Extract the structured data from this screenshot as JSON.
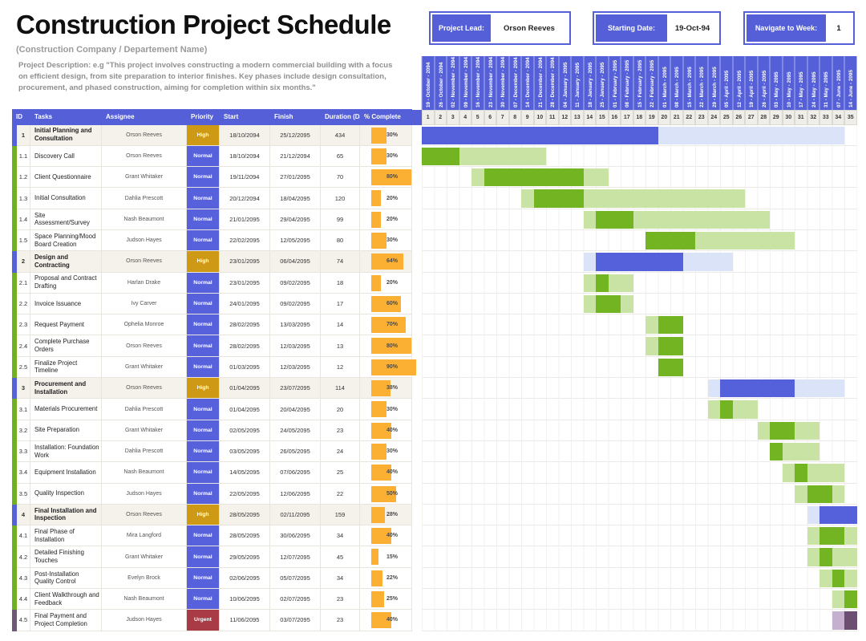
{
  "header": {
    "title": "Construction Project Schedule",
    "subtitle": "(Construction Company / Departement Name)",
    "description": "Project Description: e.g \"This project involves constructing a modern commercial building with a focus on efficient design, from site preparation to interior finishes. Key phases include design consultation, procurement, and phased construction, aiming for completion within six months.\"",
    "info_boxes": [
      {
        "label": "Project Lead:",
        "value": "Orson Reeves"
      },
      {
        "label": "Starting Date:",
        "value": "19-Oct-94"
      },
      {
        "label": "Navigate to Week:",
        "value": "1"
      }
    ]
  },
  "table": {
    "columns": [
      "ID",
      "Tasks",
      "Assignee",
      "Priority",
      "Start",
      "Finish",
      "Duration (Days)",
      "% Complete"
    ],
    "rows": [
      {
        "id": "1",
        "task": "Initial Planning and Consultation",
        "assignee": "Orson Reeves",
        "priority": "High",
        "start": "18/10/2094",
        "finish": "25/12/2095",
        "duration": "434",
        "pct": 30,
        "phase": true,
        "color": "blue",
        "segments": [
          {
            "shade": "dark",
            "from": 1,
            "to": 19
          },
          {
            "shade": "light",
            "from": 20,
            "to": 34
          }
        ]
      },
      {
        "id": "1.1",
        "task": "Discovery Call",
        "assignee": "Orson Reeves",
        "priority": "Normal",
        "start": "18/10/2094",
        "finish": "21/12/2094",
        "duration": "65",
        "pct": 30,
        "phase": false,
        "color": "green",
        "segments": [
          {
            "shade": "dark",
            "from": 1,
            "to": 3
          },
          {
            "shade": "light",
            "from": 4,
            "to": 10
          }
        ]
      },
      {
        "id": "1.2",
        "task": "Client Questionnaire",
        "assignee": "Grant Whitaker",
        "priority": "Normal",
        "start": "19/11/2094",
        "finish": "27/01/2095",
        "duration": "70",
        "pct": 80,
        "phase": false,
        "color": "green",
        "segments": [
          {
            "shade": "light",
            "from": 5,
            "to": 5
          },
          {
            "shade": "dark",
            "from": 6,
            "to": 13
          },
          {
            "shade": "light",
            "from": 14,
            "to": 15
          }
        ]
      },
      {
        "id": "1.3",
        "task": "Initial Consultation",
        "assignee": "Dahlia Prescott",
        "priority": "Normal",
        "start": "20/12/2094",
        "finish": "18/04/2095",
        "duration": "120",
        "pct": 20,
        "phase": false,
        "color": "green",
        "segments": [
          {
            "shade": "light",
            "from": 9,
            "to": 9
          },
          {
            "shade": "dark",
            "from": 10,
            "to": 13
          },
          {
            "shade": "light",
            "from": 14,
            "to": 26
          }
        ]
      },
      {
        "id": "1.4",
        "task": "Site Assessment/Survey",
        "assignee": "Nash Beaumont",
        "priority": "Normal",
        "start": "21/01/2095",
        "finish": "29/04/2095",
        "duration": "99",
        "pct": 20,
        "phase": false,
        "color": "green",
        "segments": [
          {
            "shade": "light",
            "from": 14,
            "to": 14
          },
          {
            "shade": "dark",
            "from": 15,
            "to": 17
          },
          {
            "shade": "light",
            "from": 18,
            "to": 28
          }
        ]
      },
      {
        "id": "1.5",
        "task": "Space Planning/Mood Board Creation",
        "assignee": "Judson Hayes",
        "priority": "Normal",
        "start": "22/02/2095",
        "finish": "12/05/2095",
        "duration": "80",
        "pct": 30,
        "phase": false,
        "color": "green",
        "segments": [
          {
            "shade": "dark",
            "from": 19,
            "to": 22
          },
          {
            "shade": "light",
            "from": 23,
            "to": 30
          }
        ]
      },
      {
        "id": "2",
        "task": "Design and Contracting",
        "assignee": "Orson Reeves",
        "priority": "High",
        "start": "23/01/2095",
        "finish": "06/04/2095",
        "duration": "74",
        "pct": 64,
        "phase": true,
        "color": "blue",
        "segments": [
          {
            "shade": "light",
            "from": 14,
            "to": 14
          },
          {
            "shade": "dark",
            "from": 15,
            "to": 21
          },
          {
            "shade": "light",
            "from": 22,
            "to": 25
          }
        ]
      },
      {
        "id": "2.1",
        "task": "Proposal and Contract Drafting",
        "assignee": "Harlan Drake",
        "priority": "Normal",
        "start": "23/01/2095",
        "finish": "09/02/2095",
        "duration": "18",
        "pct": 20,
        "phase": false,
        "color": "green",
        "segments": [
          {
            "shade": "light",
            "from": 14,
            "to": 14
          },
          {
            "shade": "dark",
            "from": 15,
            "to": 15
          },
          {
            "shade": "light",
            "from": 16,
            "to": 17
          }
        ]
      },
      {
        "id": "2.2",
        "task": "Invoice Issuance",
        "assignee": "Ivy Carver",
        "priority": "Normal",
        "start": "24/01/2095",
        "finish": "09/02/2095",
        "duration": "17",
        "pct": 60,
        "phase": false,
        "color": "green",
        "segments": [
          {
            "shade": "light",
            "from": 14,
            "to": 14
          },
          {
            "shade": "dark",
            "from": 15,
            "to": 16
          },
          {
            "shade": "light",
            "from": 17,
            "to": 17
          }
        ]
      },
      {
        "id": "2.3",
        "task": "Request Payment",
        "assignee": "Ophelia Monroe",
        "priority": "Normal",
        "start": "28/02/2095",
        "finish": "13/03/2095",
        "duration": "14",
        "pct": 70,
        "phase": false,
        "color": "green",
        "segments": [
          {
            "shade": "light",
            "from": 19,
            "to": 19
          },
          {
            "shade": "dark",
            "from": 20,
            "to": 21
          }
        ]
      },
      {
        "id": "2.4",
        "task": "Complete Purchase Orders",
        "assignee": "Orson Reeves",
        "priority": "Normal",
        "start": "28/02/2095",
        "finish": "12/03/2095",
        "duration": "13",
        "pct": 80,
        "phase": false,
        "color": "green",
        "segments": [
          {
            "shade": "light",
            "from": 19,
            "to": 19
          },
          {
            "shade": "dark",
            "from": 20,
            "to": 21
          }
        ]
      },
      {
        "id": "2.5",
        "task": "Finalize Project Timeline",
        "assignee": "Grant Whitaker",
        "priority": "Normal",
        "start": "01/03/2095",
        "finish": "12/03/2095",
        "duration": "12",
        "pct": 90,
        "phase": false,
        "color": "green",
        "segments": [
          {
            "shade": "dark",
            "from": 20,
            "to": 21
          }
        ]
      },
      {
        "id": "3",
        "task": "Procurement and Installation",
        "assignee": "Orson Reeves",
        "priority": "High",
        "start": "01/04/2095",
        "finish": "23/07/2095",
        "duration": "114",
        "pct": 38,
        "phase": true,
        "color": "blue",
        "segments": [
          {
            "shade": "light",
            "from": 24,
            "to": 24
          },
          {
            "shade": "dark",
            "from": 25,
            "to": 30
          },
          {
            "shade": "light",
            "from": 31,
            "to": 34
          }
        ]
      },
      {
        "id": "3.1",
        "task": "Materials Procurement",
        "assignee": "Dahlia Prescott",
        "priority": "Normal",
        "start": "01/04/2095",
        "finish": "20/04/2095",
        "duration": "20",
        "pct": 30,
        "phase": false,
        "color": "green",
        "segments": [
          {
            "shade": "light",
            "from": 24,
            "to": 24
          },
          {
            "shade": "dark",
            "from": 25,
            "to": 25
          },
          {
            "shade": "light",
            "from": 26,
            "to": 27
          }
        ]
      },
      {
        "id": "3.2",
        "task": "Site Preparation",
        "assignee": "Grant Whitaker",
        "priority": "Normal",
        "start": "02/05/2095",
        "finish": "24/05/2095",
        "duration": "23",
        "pct": 40,
        "phase": false,
        "color": "green",
        "segments": [
          {
            "shade": "light",
            "from": 28,
            "to": 28
          },
          {
            "shade": "dark",
            "from": 29,
            "to": 30
          },
          {
            "shade": "light",
            "from": 31,
            "to": 32
          }
        ]
      },
      {
        "id": "3.3",
        "task": "Installation: Foundation Work",
        "assignee": "Dahlia Prescott",
        "priority": "Normal",
        "start": "03/05/2095",
        "finish": "26/05/2095",
        "duration": "24",
        "pct": 30,
        "phase": false,
        "color": "green",
        "segments": [
          {
            "shade": "dark",
            "from": 29,
            "to": 29
          },
          {
            "shade": "light",
            "from": 30,
            "to": 32
          }
        ]
      },
      {
        "id": "3.4",
        "task": "Equipment Installation",
        "assignee": "Nash Beaumont",
        "priority": "Normal",
        "start": "14/05/2095",
        "finish": "07/06/2095",
        "duration": "25",
        "pct": 40,
        "phase": false,
        "color": "green",
        "segments": [
          {
            "shade": "light",
            "from": 30,
            "to": 30
          },
          {
            "shade": "dark",
            "from": 31,
            "to": 31
          },
          {
            "shade": "light",
            "from": 32,
            "to": 34
          }
        ]
      },
      {
        "id": "3.5",
        "task": "Quality Inspection",
        "assignee": "Judson Hayes",
        "priority": "Normal",
        "start": "22/05/2095",
        "finish": "12/06/2095",
        "duration": "22",
        "pct": 50,
        "phase": false,
        "color": "green",
        "segments": [
          {
            "shade": "light",
            "from": 31,
            "to": 31
          },
          {
            "shade": "dark",
            "from": 32,
            "to": 33
          },
          {
            "shade": "light",
            "from": 34,
            "to": 34
          }
        ]
      },
      {
        "id": "4",
        "task": "Final Installation and Inspection",
        "assignee": "Orson Reeves",
        "priority": "High",
        "start": "28/05/2095",
        "finish": "02/11/2095",
        "duration": "159",
        "pct": 28,
        "phase": true,
        "color": "blue",
        "segments": [
          {
            "shade": "light",
            "from": 32,
            "to": 32
          },
          {
            "shade": "dark",
            "from": 33,
            "to": 35
          }
        ]
      },
      {
        "id": "4.1",
        "task": "Final Phase of Installation",
        "assignee": "Mira Langford",
        "priority": "Normal",
        "start": "28/05/2095",
        "finish": "30/06/2095",
        "duration": "34",
        "pct": 40,
        "phase": false,
        "color": "green",
        "segments": [
          {
            "shade": "light",
            "from": 32,
            "to": 32
          },
          {
            "shade": "dark",
            "from": 33,
            "to": 34
          },
          {
            "shade": "light",
            "from": 35,
            "to": 35
          }
        ]
      },
      {
        "id": "4.2",
        "task": "Detailed Finishing Touches",
        "assignee": "Grant Whitaker",
        "priority": "Normal",
        "start": "29/05/2095",
        "finish": "12/07/2095",
        "duration": "45",
        "pct": 15,
        "phase": false,
        "color": "green",
        "segments": [
          {
            "shade": "light",
            "from": 32,
            "to": 32
          },
          {
            "shade": "dark",
            "from": 33,
            "to": 33
          },
          {
            "shade": "light",
            "from": 34,
            "to": 35
          }
        ]
      },
      {
        "id": "4.3",
        "task": "Post-Installation Quality Control",
        "assignee": "Evelyn Brock",
        "priority": "Normal",
        "start": "02/06/2095",
        "finish": "05/07/2095",
        "duration": "34",
        "pct": 22,
        "phase": false,
        "color": "green",
        "segments": [
          {
            "shade": "light",
            "from": 33,
            "to": 33
          },
          {
            "shade": "dark",
            "from": 34,
            "to": 34
          },
          {
            "shade": "light",
            "from": 35,
            "to": 35
          }
        ]
      },
      {
        "id": "4.4",
        "task": "Client Walkthrough and Feedback",
        "assignee": "Nash Beaumont",
        "priority": "Normal",
        "start": "10/06/2095",
        "finish": "02/07/2095",
        "duration": "23",
        "pct": 25,
        "phase": false,
        "color": "green",
        "segments": [
          {
            "shade": "light",
            "from": 34,
            "to": 34
          },
          {
            "shade": "dark",
            "from": 35,
            "to": 35
          }
        ]
      },
      {
        "id": "4.5",
        "task": "Final Payment and Project Completion",
        "assignee": "Judson Hayes",
        "priority": "Urgent",
        "start": "11/06/2095",
        "finish": "03/07/2095",
        "duration": "23",
        "pct": 40,
        "phase": false,
        "color": "purple",
        "segments": [
          {
            "shade": "light",
            "from": 34,
            "to": 34
          },
          {
            "shade": "dark",
            "from": 35,
            "to": 35
          }
        ]
      }
    ]
  },
  "gantt": {
    "weeks": [
      {
        "num": "1",
        "date": "19 - October - 2094"
      },
      {
        "num": "2",
        "date": "26 - October - 2094"
      },
      {
        "num": "3",
        "date": "02 - November - 2094"
      },
      {
        "num": "4",
        "date": "09 - November - 2094"
      },
      {
        "num": "5",
        "date": "16 - November - 2094"
      },
      {
        "num": "6",
        "date": "23 - November - 2094"
      },
      {
        "num": "7",
        "date": "30 - November - 2094"
      },
      {
        "num": "8",
        "date": "07 - December - 2094"
      },
      {
        "num": "9",
        "date": "14 - December - 2094"
      },
      {
        "num": "10",
        "date": "21 - December - 2094"
      },
      {
        "num": "11",
        "date": "28 - December - 2094"
      },
      {
        "num": "12",
        "date": "04 - January - 2095"
      },
      {
        "num": "13",
        "date": "11 - January - 2095"
      },
      {
        "num": "14",
        "date": "18 - January - 2095"
      },
      {
        "num": "15",
        "date": "25 - January - 2095"
      },
      {
        "num": "16",
        "date": "01 - February - 2095"
      },
      {
        "num": "17",
        "date": "08 - February - 2095"
      },
      {
        "num": "18",
        "date": "15 - February - 2095"
      },
      {
        "num": "19",
        "date": "22 - February - 2095"
      },
      {
        "num": "20",
        "date": "01 - March - 2095"
      },
      {
        "num": "21",
        "date": "08 - March - 2095"
      },
      {
        "num": "22",
        "date": "15 - March - 2095"
      },
      {
        "num": "23",
        "date": "22 - March - 2095"
      },
      {
        "num": "24",
        "date": "29 - March - 2095"
      },
      {
        "num": "25",
        "date": "05 - April - 2095"
      },
      {
        "num": "26",
        "date": "12 - April - 2095"
      },
      {
        "num": "27",
        "date": "19 - April - 2095"
      },
      {
        "num": "28",
        "date": "26 - April - 2095"
      },
      {
        "num": "29",
        "date": "03 - May - 2095"
      },
      {
        "num": "30",
        "date": "10 - May - 2095"
      },
      {
        "num": "31",
        "date": "17 - May - 2095"
      },
      {
        "num": "32",
        "date": "24 - May - 2095"
      },
      {
        "num": "33",
        "date": "31 - May - 2095"
      },
      {
        "num": "34",
        "date": "07 - June - 2095"
      },
      {
        "num": "35",
        "date": "14 - June - 2095"
      }
    ]
  },
  "colors": {
    "accent_blue": "#5560d8",
    "priority_normal": "#5661db",
    "priority_high": "#ce9914",
    "priority_urgent": "#a93b47",
    "progress_orange": "#fbb034",
    "phase_row_bg": "#f5f1eb",
    "bar_blue_dark": "#5560db",
    "bar_blue_light": "#dbe3f8",
    "bar_green_dark": "#73b422",
    "bar_green_light": "#c8e3a4",
    "bar_purple_dark": "#6b4e71",
    "bar_purple_light": "#c5b1cf",
    "strip_blue": "#5560db",
    "strip_green": "#6fb11f",
    "strip_purple": "#6e5876"
  }
}
